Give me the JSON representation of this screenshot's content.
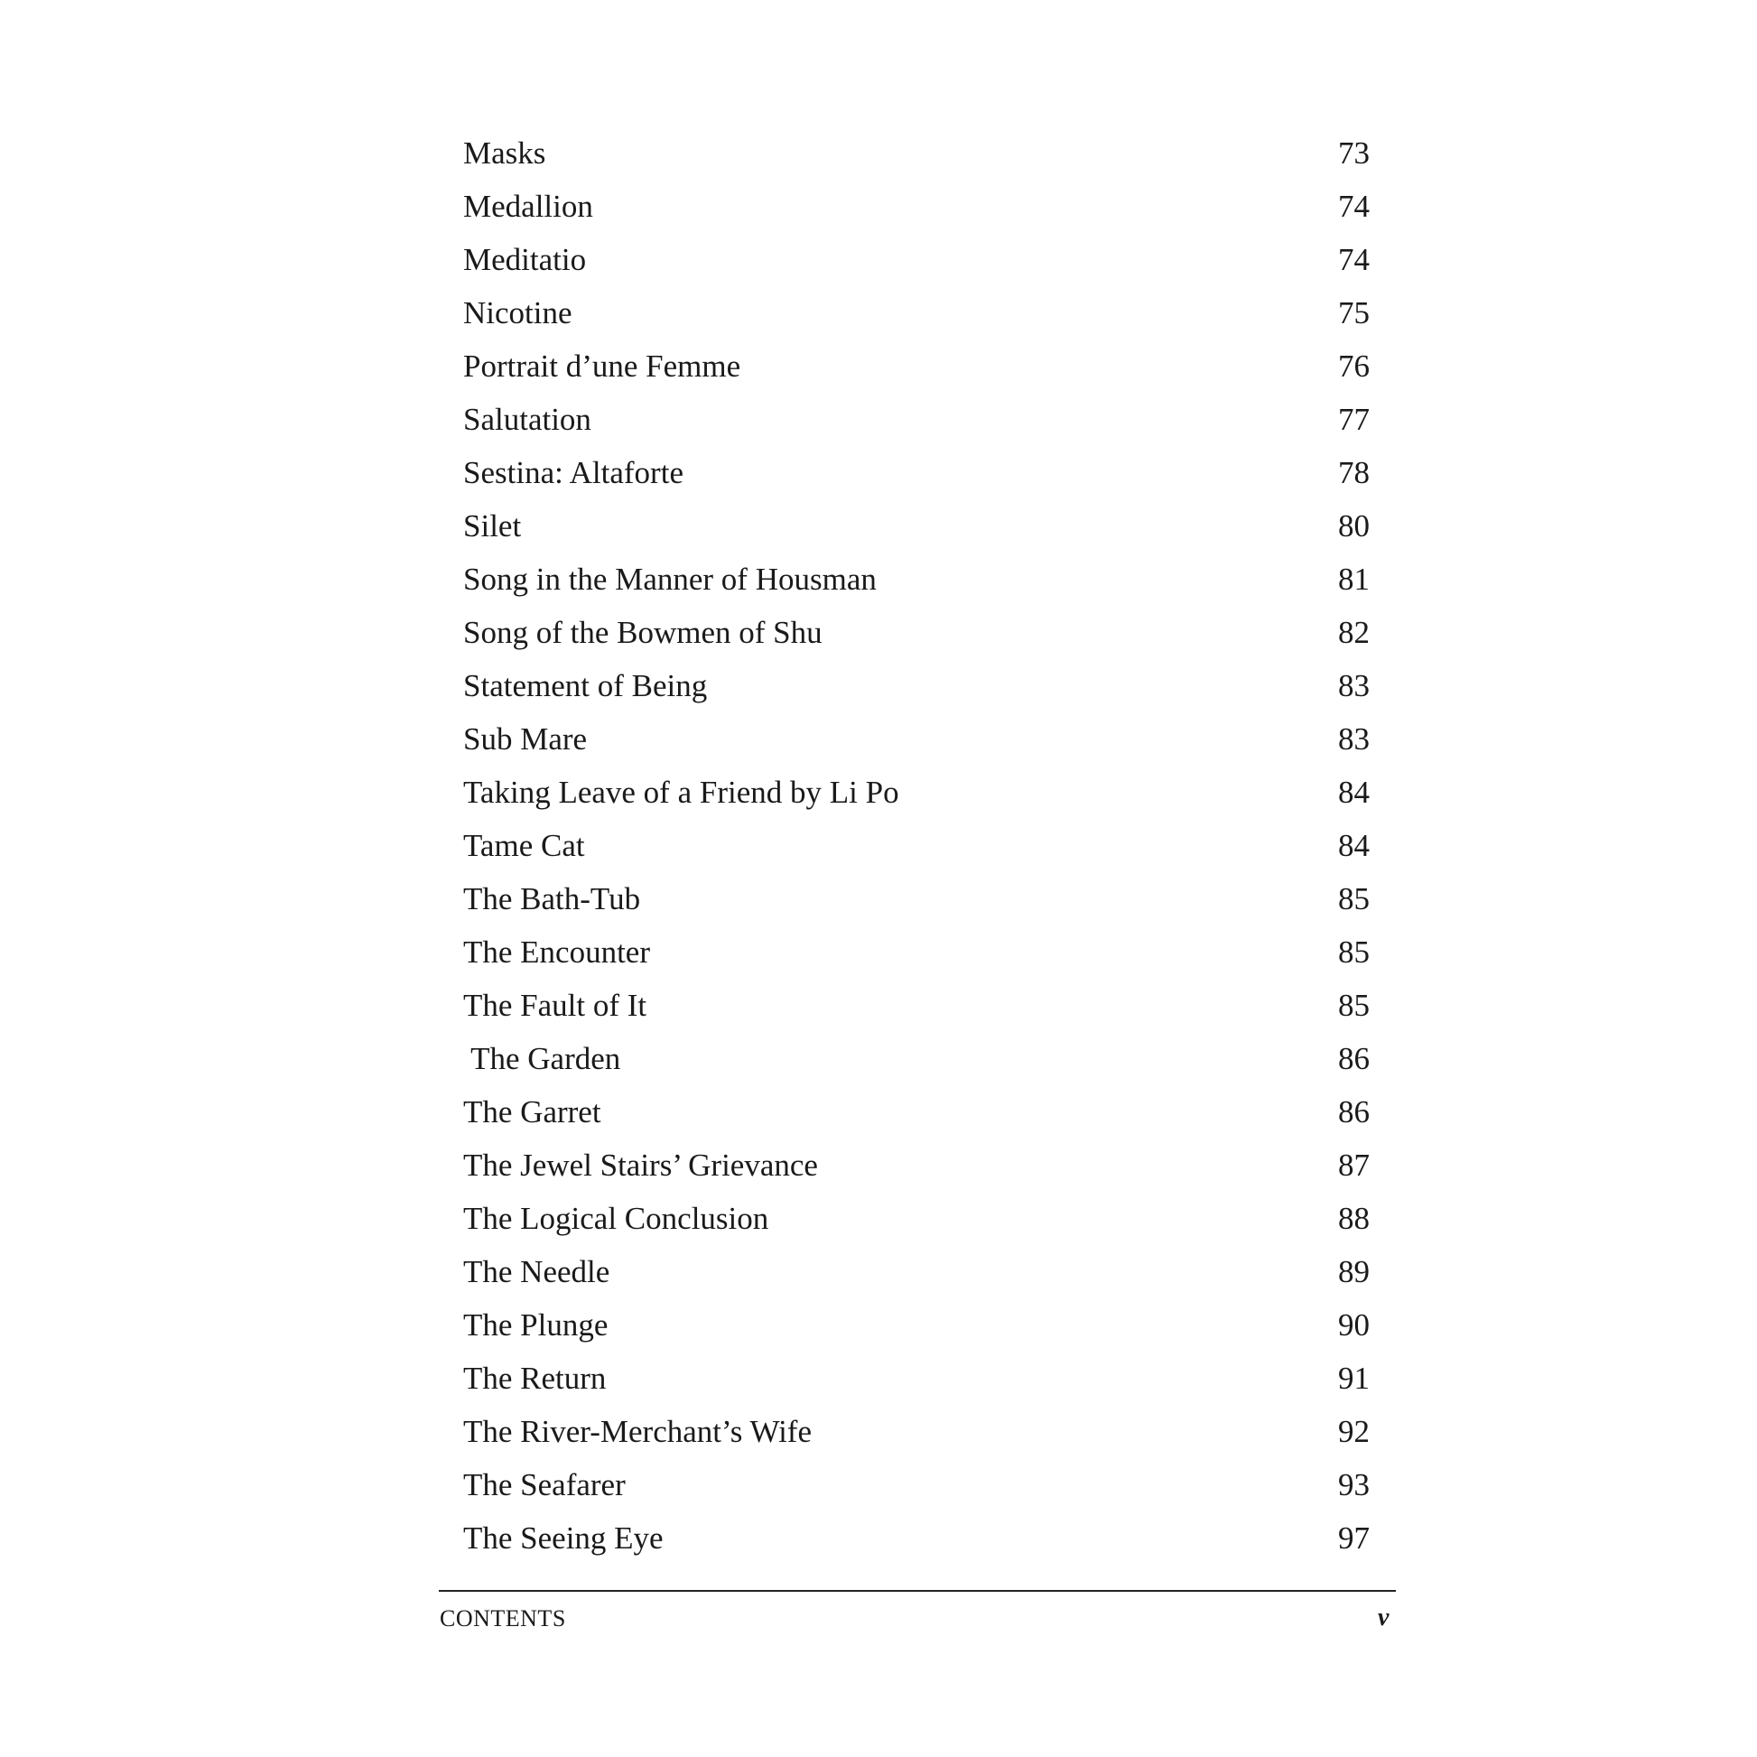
{
  "entries": [
    {
      "title": "Masks",
      "page": "73"
    },
    {
      "title": "Medallion",
      "page": "74"
    },
    {
      "title": "Meditatio",
      "page": "74"
    },
    {
      "title": "Nicotine",
      "page": "75"
    },
    {
      "title": "Portrait d’une Femme",
      "page": "76"
    },
    {
      "title": "Salutation",
      "page": "77"
    },
    {
      "title": "Sestina: Altaforte",
      "page": "78"
    },
    {
      "title": "Silet",
      "page": "80"
    },
    {
      "title": "Song in the Manner of Housman",
      "page": "81"
    },
    {
      "title": "Song of the Bowmen of Shu",
      "page": "82"
    },
    {
      "title": "Statement of Being",
      "page": "83"
    },
    {
      "title": "Sub Mare",
      "page": "83"
    },
    {
      "title": "Taking Leave of a Friend by Li Po",
      "page": "84"
    },
    {
      "title": "Tame Cat",
      "page": "84"
    },
    {
      "title": "The Bath-Tub",
      "page": "85"
    },
    {
      "title": "The Encounter",
      "page": "85"
    },
    {
      "title": "The Fault of It",
      "page": "85"
    },
    {
      "title": " The Garden",
      "page": "86"
    },
    {
      "title": "The Garret",
      "page": "86"
    },
    {
      "title": "The Jewel Stairs’ Grievance",
      "page": "87"
    },
    {
      "title": "The Logical Conclusion",
      "page": "88"
    },
    {
      "title": "The Needle",
      "page": "89"
    },
    {
      "title": "The Plunge",
      "page": "90"
    },
    {
      "title": "The Return",
      "page": "91"
    },
    {
      "title": "The River-Merchant’s Wife",
      "page": "92"
    },
    {
      "title": "The Seafarer",
      "page": "93"
    },
    {
      "title": "The Seeing Eye",
      "page": "97"
    }
  ],
  "footer": {
    "section": "CONTENTS",
    "page_number": "v"
  }
}
